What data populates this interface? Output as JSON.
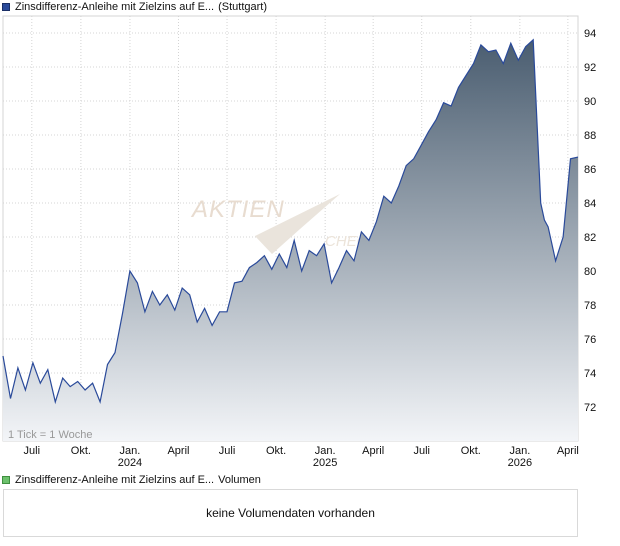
{
  "legend": {
    "price_label": "Zinsdifferenz-Anleihe mit Zielzins auf E...",
    "price_suffix": "(Stuttgart)",
    "price_color": "#2a4a9a",
    "volume_label": "Zinsdifferenz-Anleihe mit Zielzins auf E...",
    "volume_suffix": "Volumen",
    "volume_color": "#6cc16c"
  },
  "tick_note": "1 Tick = 1 Woche",
  "watermark": {
    "text": "AKTIEN",
    "text2": "CHECK"
  },
  "volume_message": "keine Volumendaten vorhanden",
  "colors": {
    "line": "#2a4a9a",
    "fill_top": "#4a5d70",
    "fill_bottom": "#f3f5f8",
    "grid": "#d4d4d4"
  },
  "chart_data": {
    "type": "area",
    "ylim": [
      70,
      95
    ],
    "y_ticks": [
      72,
      74,
      76,
      78,
      80,
      82,
      84,
      86,
      88,
      90,
      92,
      94
    ],
    "x_range": [
      "2023-05-08",
      "2026-04-20"
    ],
    "x_ticks": [
      {
        "label": "Juli",
        "year": "",
        "date": "2023-07-01"
      },
      {
        "label": "Okt.",
        "year": "",
        "date": "2023-10-01"
      },
      {
        "label": "Jan.",
        "year": "2024",
        "date": "2024-01-01"
      },
      {
        "label": "April",
        "year": "",
        "date": "2024-04-01"
      },
      {
        "label": "Juli",
        "year": "",
        "date": "2024-07-01"
      },
      {
        "label": "Okt.",
        "year": "",
        "date": "2024-10-01"
      },
      {
        "label": "Jan.",
        "year": "2025",
        "date": "2025-01-01"
      },
      {
        "label": "April",
        "year": "",
        "date": "2025-04-01"
      },
      {
        "label": "Juli",
        "year": "",
        "date": "2025-07-01"
      },
      {
        "label": "Okt.",
        "year": "",
        "date": "2025-10-01"
      },
      {
        "label": "Jan.",
        "year": "2026",
        "date": "2026-01-01"
      },
      {
        "label": "April",
        "year": "",
        "date": "2026-04-01"
      }
    ],
    "grid": true,
    "series": [
      {
        "x": [
          "2023-05-08",
          "2023-05-22",
          "2023-06-05",
          "2023-06-19",
          "2023-07-03",
          "2023-07-17",
          "2023-07-31",
          "2023-08-14",
          "2023-08-28",
          "2023-09-11",
          "2023-09-25",
          "2023-10-09",
          "2023-10-23",
          "2023-11-06",
          "2023-11-20",
          "2023-12-04",
          "2023-12-18",
          "2024-01-01",
          "2024-01-15",
          "2024-01-29",
          "2024-02-12",
          "2024-02-26",
          "2024-03-11",
          "2024-03-25",
          "2024-04-08",
          "2024-04-22",
          "2024-05-06",
          "2024-05-20",
          "2024-06-03",
          "2024-06-17",
          "2024-07-01",
          "2024-07-15",
          "2024-07-29",
          "2024-08-12",
          "2024-08-26",
          "2024-09-09",
          "2024-09-23",
          "2024-10-07",
          "2024-10-21",
          "2024-11-04",
          "2024-11-18",
          "2024-12-02",
          "2024-12-16",
          "2024-12-30",
          "2025-01-13",
          "2025-01-27",
          "2025-02-10",
          "2025-02-24",
          "2025-03-10",
          "2025-03-24",
          "2025-04-07",
          "2025-04-21",
          "2025-05-05",
          "2025-05-19",
          "2025-06-02",
          "2025-06-16",
          "2025-06-30",
          "2025-07-14",
          "2025-07-28",
          "2025-08-11",
          "2025-08-25",
          "2025-09-08",
          "2025-09-22",
          "2025-10-06",
          "2025-10-20",
          "2025-11-03",
          "2025-11-17",
          "2025-12-01",
          "2025-12-15",
          "2025-12-29",
          "2026-01-12",
          "2026-01-26",
          "2026-02-09",
          "2026-02-16",
          "2026-02-23",
          "2026-03-09",
          "2026-03-23",
          "2026-04-06",
          "2026-04-20"
        ],
        "y": [
          75.0,
          72.5,
          74.3,
          73.0,
          74.6,
          73.4,
          74.2,
          72.3,
          73.7,
          73.2,
          73.5,
          73.0,
          73.4,
          72.3,
          74.5,
          75.2,
          77.5,
          80.0,
          79.3,
          77.6,
          78.8,
          78.0,
          78.6,
          77.7,
          79.0,
          78.6,
          77.0,
          77.8,
          76.8,
          77.6,
          77.6,
          79.3,
          79.4,
          80.2,
          80.5,
          80.9,
          80.1,
          81.0,
          80.2,
          81.8,
          80.0,
          81.2,
          80.9,
          81.6,
          79.3,
          80.2,
          81.2,
          80.6,
          82.3,
          81.8,
          82.9,
          84.4,
          84.0,
          85.0,
          86.2,
          86.6,
          87.4,
          88.2,
          88.9,
          89.9,
          89.7,
          90.8,
          91.5,
          92.2,
          93.3,
          92.9,
          93.0,
          92.2,
          93.4,
          92.4,
          93.2,
          93.6,
          84.0,
          83.0,
          82.6,
          80.6,
          82.0,
          86.6,
          86.7
        ]
      }
    ]
  }
}
